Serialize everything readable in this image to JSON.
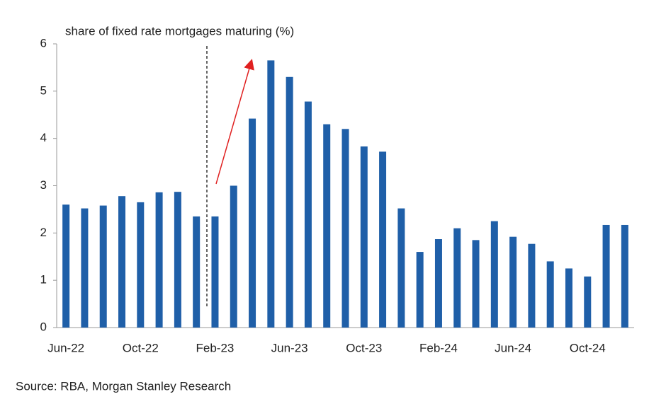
{
  "chart_data": {
    "type": "bar",
    "title": "share of fixed rate mortgages maturing (%)",
    "source": "Source: RBA, Morgan Stanley Research",
    "categories": [
      "Jun-22",
      null,
      null,
      null,
      "Oct-22",
      null,
      null,
      null,
      "Feb-23",
      null,
      null,
      null,
      "Jun-23",
      null,
      null,
      null,
      "Oct-23",
      null,
      null,
      null,
      "Feb-24",
      null,
      null,
      null,
      "Jun-24",
      null,
      null,
      null,
      "Oct-24",
      null,
      null
    ],
    "values": [
      2.6,
      2.52,
      2.58,
      2.78,
      2.65,
      2.86,
      2.87,
      2.35,
      2.35,
      3.0,
      4.42,
      5.65,
      5.3,
      4.78,
      4.3,
      4.2,
      3.83,
      3.72,
      2.52,
      1.6,
      1.87,
      2.1,
      1.85,
      2.25,
      1.92,
      1.77,
      1.4,
      1.25,
      1.08,
      2.17,
      2.17
    ],
    "color": "#1f5fa8",
    "ylim": [
      0,
      6
    ],
    "yticks": [
      0,
      1,
      2,
      3,
      4,
      5,
      6
    ],
    "grid": false
  }
}
